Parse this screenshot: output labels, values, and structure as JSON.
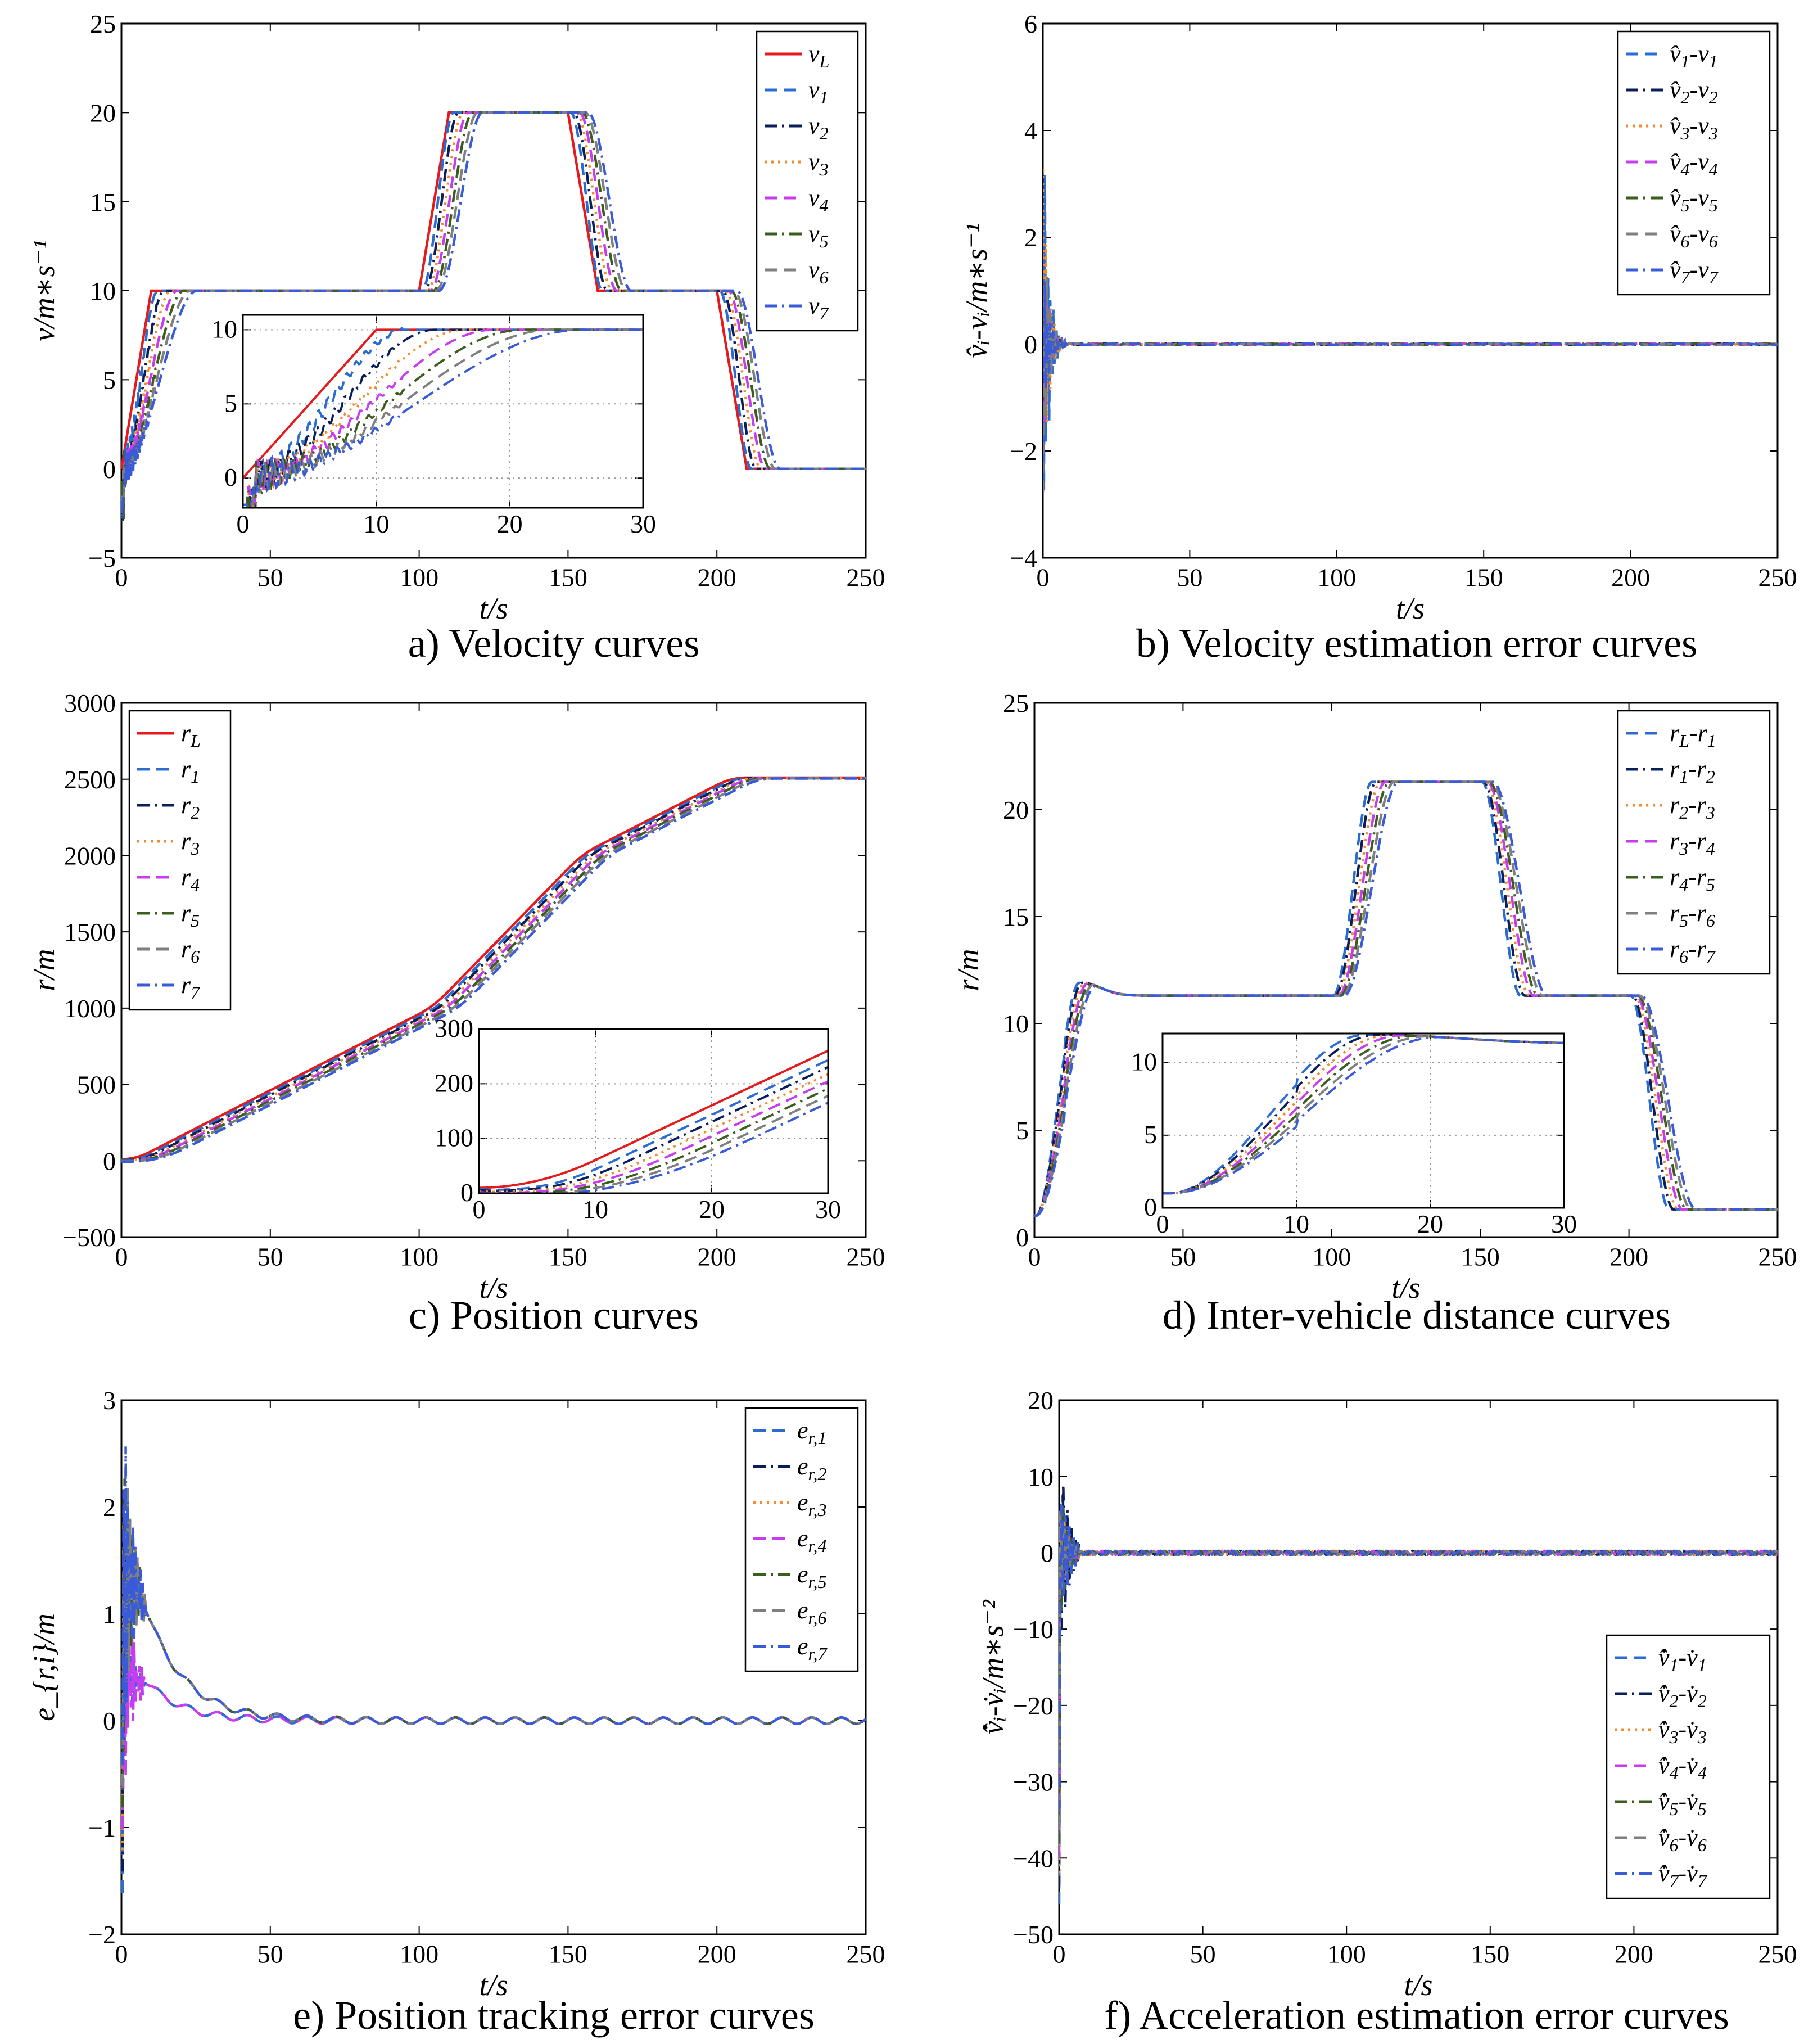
{
  "chart_data": [
    {
      "type": "line",
      "caption": "a)  Velocity  curves",
      "xlabel": "t/s",
      "ylabel": "v/m∗s⁻¹",
      "xlim": [
        0,
        250
      ],
      "ylim": [
        -5,
        25
      ],
      "xticks": [
        "0",
        "50",
        "100",
        "150",
        "200",
        "250"
      ],
      "yticks": [
        "−5",
        "0",
        "5",
        "10",
        "15",
        "20",
        "25"
      ],
      "legend_position": "top-right",
      "kind": "velocity",
      "series": [
        {
          "name": "v_L",
          "label": "v",
          "sub": "L",
          "color": "#e41a1c",
          "style": "solid"
        },
        {
          "name": "v_1",
          "label": "v",
          "sub": "1",
          "color": "#2b6cd1",
          "style": "dash"
        },
        {
          "name": "v_2",
          "label": "v",
          "sub": "2",
          "color": "#0b1e5c",
          "style": "dashdot"
        },
        {
          "name": "v_3",
          "label": "v",
          "sub": "3",
          "color": "#f28a2e",
          "style": "dot"
        },
        {
          "name": "v_4",
          "label": "v",
          "sub": "4",
          "color": "#c83cf0",
          "style": "dash"
        },
        {
          "name": "v_5",
          "label": "v",
          "sub": "5",
          "color": "#3b5d1e",
          "style": "dashdot"
        },
        {
          "name": "v_6",
          "label": "v",
          "sub": "6",
          "color": "#7f7f7f",
          "style": "dash"
        },
        {
          "name": "v_7",
          "label": "v",
          "sub": "7",
          "color": "#3a5bd8",
          "style": "dashdot"
        }
      ],
      "inset": {
        "xlim": [
          0,
          30
        ],
        "ylim": [
          -2,
          11
        ],
        "xticks": [
          "0",
          "10",
          "20",
          "30"
        ],
        "yticks": [
          "0",
          "5",
          "10"
        ]
      }
    },
    {
      "type": "line",
      "caption": "b)  Velocity estimation error curves",
      "xlabel": "t/s",
      "ylabel": "v̂ᵢ-vᵢ/m∗s⁻¹",
      "xlim": [
        0,
        250
      ],
      "ylim": [
        -4,
        6
      ],
      "xticks": [
        "0",
        "50",
        "100",
        "150",
        "200",
        "250"
      ],
      "yticks": [
        "−4",
        "−2",
        "0",
        "2",
        "4",
        "6"
      ],
      "legend_position": "top-right",
      "kind": "vel_err",
      "series": [
        {
          "name": "v̂_1-v_1",
          "label": "v̂",
          "sub": "1",
          "color": "#2b6cd1",
          "style": "dash"
        },
        {
          "name": "v̂_2-v_2",
          "label": "v̂",
          "sub": "2",
          "color": "#0b1e5c",
          "style": "dashdot"
        },
        {
          "name": "v̂_3-v_3",
          "label": "v̂",
          "sub": "3",
          "color": "#f28a2e",
          "style": "dot"
        },
        {
          "name": "v̂_4-v_4",
          "label": "v̂",
          "sub": "4",
          "color": "#c83cf0",
          "style": "dash"
        },
        {
          "name": "v̂_5-v_5",
          "label": "v̂",
          "sub": "5",
          "color": "#3b5d1e",
          "style": "dashdot"
        },
        {
          "name": "v̂_6-v_6",
          "label": "v̂",
          "sub": "6",
          "color": "#7f7f7f",
          "style": "dash"
        },
        {
          "name": "v̂_7-v_7",
          "label": "v̂",
          "sub": "7",
          "color": "#3a5bd8",
          "style": "dashdot"
        }
      ]
    },
    {
      "type": "line",
      "caption": "c)  Position  curves",
      "xlabel": "t/s",
      "ylabel": "r/m",
      "xlim": [
        0,
        250
      ],
      "ylim": [
        -500,
        3000
      ],
      "xticks": [
        "0",
        "50",
        "100",
        "150",
        "200",
        "250"
      ],
      "yticks": [
        "−500",
        "0",
        "500",
        "1000",
        "1500",
        "2000",
        "2500",
        "3000"
      ],
      "legend_position": "top-left",
      "kind": "position",
      "series": [
        {
          "name": "r_L",
          "label": "r",
          "sub": "L",
          "color": "#e41a1c",
          "style": "solid"
        },
        {
          "name": "r_1",
          "label": "r",
          "sub": "1",
          "color": "#2b6cd1",
          "style": "dash"
        },
        {
          "name": "r_2",
          "label": "r",
          "sub": "2",
          "color": "#0b1e5c",
          "style": "dashdot"
        },
        {
          "name": "r_3",
          "label": "r",
          "sub": "3",
          "color": "#f28a2e",
          "style": "dot"
        },
        {
          "name": "r_4",
          "label": "r",
          "sub": "4",
          "color": "#c83cf0",
          "style": "dash"
        },
        {
          "name": "r_5",
          "label": "r",
          "sub": "5",
          "color": "#3b5d1e",
          "style": "dashdot"
        },
        {
          "name": "r_6",
          "label": "r",
          "sub": "6",
          "color": "#7f7f7f",
          "style": "dash"
        },
        {
          "name": "r_7",
          "label": "r",
          "sub": "7",
          "color": "#3a5bd8",
          "style": "dashdot"
        }
      ],
      "inset": {
        "xlim": [
          0,
          30
        ],
        "ylim": [
          0,
          300
        ],
        "xticks": [
          "0",
          "10",
          "20",
          "30"
        ],
        "yticks": [
          "0",
          "100",
          "200",
          "300"
        ]
      }
    },
    {
      "type": "line",
      "caption": "d)  Inter-vehicle distance curves",
      "xlabel": "t/s",
      "ylabel": "r/m",
      "xlim": [
        0,
        250
      ],
      "ylim": [
        0,
        25
      ],
      "xticks": [
        "0",
        "50",
        "100",
        "150",
        "200",
        "250"
      ],
      "yticks": [
        "0",
        "5",
        "10",
        "15",
        "20",
        "25"
      ],
      "legend_position": "top-right",
      "kind": "distance",
      "series": [
        {
          "name": "r_L-r_1",
          "label": "r",
          "sub": "L",
          "sub2": "1",
          "color": "#2b6cd1",
          "style": "dash"
        },
        {
          "name": "r_1-r_2",
          "label": "r",
          "sub": "1",
          "sub2": "2",
          "color": "#0b1e5c",
          "style": "dashdot"
        },
        {
          "name": "r_2-r_3",
          "label": "r",
          "sub": "2",
          "sub2": "3",
          "color": "#f28a2e",
          "style": "dot"
        },
        {
          "name": "r_3-r_4",
          "label": "r",
          "sub": "3",
          "sub2": "4",
          "color": "#c83cf0",
          "style": "dash"
        },
        {
          "name": "r_4-r_5",
          "label": "r",
          "sub": "4",
          "sub2": "5",
          "color": "#3b5d1e",
          "style": "dashdot"
        },
        {
          "name": "r_5-r_6",
          "label": "r",
          "sub": "5",
          "sub2": "6",
          "color": "#7f7f7f",
          "style": "dash"
        },
        {
          "name": "r_6-r_7",
          "label": "r",
          "sub": "6",
          "sub2": "7",
          "color": "#3a5bd8",
          "style": "dashdot"
        }
      ],
      "inset": {
        "xlim": [
          0,
          30
        ],
        "ylim": [
          0,
          12
        ],
        "xticks": [
          "0",
          "10",
          "20",
          "30"
        ],
        "yticks": [
          "0",
          "5",
          "10"
        ]
      }
    },
    {
      "type": "line",
      "caption": "e)  Position tracking  error curves",
      "xlabel": "t/s",
      "ylabel": "e_{r,i}/m",
      "xlim": [
        0,
        250
      ],
      "ylim": [
        -2,
        3
      ],
      "xticks": [
        "0",
        "50",
        "100",
        "150",
        "200",
        "250"
      ],
      "yticks": [
        "−2",
        "−1",
        "0",
        "1",
        "2",
        "3"
      ],
      "legend_position": "top-right",
      "kind": "pos_err",
      "series": [
        {
          "name": "e_r,1",
          "label": "e",
          "sub": "r,1",
          "color": "#2b6cd1",
          "style": "dash"
        },
        {
          "name": "e_r,2",
          "label": "e",
          "sub": "r,2",
          "color": "#0b1e5c",
          "style": "dashdot"
        },
        {
          "name": "e_r,3",
          "label": "e",
          "sub": "r,3",
          "color": "#f28a2e",
          "style": "dot"
        },
        {
          "name": "e_r,4",
          "label": "e",
          "sub": "r,4",
          "color": "#c83cf0",
          "style": "dash"
        },
        {
          "name": "e_r,5",
          "label": "e",
          "sub": "r,5",
          "color": "#3b5d1e",
          "style": "dashdot"
        },
        {
          "name": "e_r,6",
          "label": "e",
          "sub": "r,6",
          "color": "#7f7f7f",
          "style": "dash"
        },
        {
          "name": "e_r,7",
          "label": "e",
          "sub": "r,7",
          "color": "#3a5bd8",
          "style": "dashdot"
        }
      ]
    },
    {
      "type": "line",
      "caption": "f)  Acceleration estimation error curves",
      "xlabel": "t/s",
      "ylabel": "v̂̇ᵢ-v̇ᵢ/m∗s⁻²",
      "xlim": [
        0,
        250
      ],
      "ylim": [
        -50,
        20
      ],
      "xticks": [
        "0",
        "50",
        "100",
        "150",
        "200",
        "250"
      ],
      "yticks": [
        "−50",
        "−40",
        "−30",
        "−20",
        "−10",
        "0",
        "10",
        "20"
      ],
      "legend_position": "right",
      "kind": "acc_err",
      "series": [
        {
          "name": "v̂̇_1-v̇_1",
          "label": "v̂̇",
          "sub": "1",
          "color": "#2b6cd1",
          "style": "dash"
        },
        {
          "name": "v̂̇_2-v̇_2",
          "label": "v̂̇",
          "sub": "2",
          "color": "#0b1e5c",
          "style": "dashdot"
        },
        {
          "name": "v̂̇_3-v̇_3",
          "label": "v̂̇",
          "sub": "3",
          "color": "#f28a2e",
          "style": "dot"
        },
        {
          "name": "v̂̇_4-v̇_4",
          "label": "v̂̇",
          "sub": "4",
          "color": "#c83cf0",
          "style": "dash"
        },
        {
          "name": "v̂̇_5-v̇_5",
          "label": "v̂̇",
          "sub": "5",
          "color": "#3b5d1e",
          "style": "dashdot"
        },
        {
          "name": "v̂̇_6-v̇_6",
          "label": "v̂̇",
          "sub": "6",
          "color": "#7f7f7f",
          "style": "dash"
        },
        {
          "name": "v̂̇_7-v̇_7",
          "label": "v̂̇",
          "sub": "7",
          "color": "#3a5bd8",
          "style": "dashdot"
        }
      ]
    }
  ]
}
